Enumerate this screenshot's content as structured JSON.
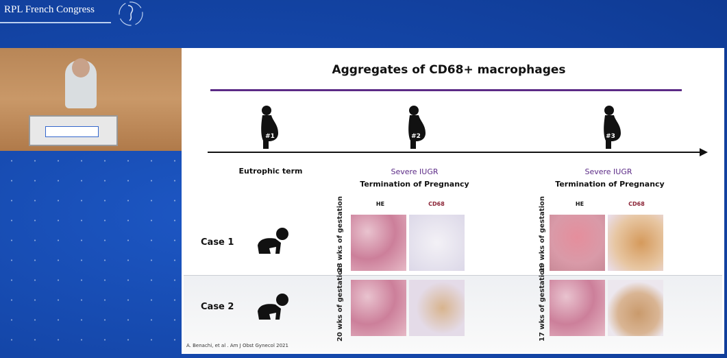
{
  "header": {
    "brand": "RPL French Congress"
  },
  "slide": {
    "title": "Aggregates of CD68+ macrophages",
    "accent_color": "#5b2a86",
    "timeline": [
      {
        "marker": "#1",
        "label": "Eutrophic term"
      },
      {
        "marker": "#2",
        "label_colored": "Severe IUGR",
        "label": "Termination of Pregnancy"
      },
      {
        "marker": "#3",
        "label_colored": "Severe IUGR",
        "label": "Termination of Pregnancy"
      }
    ],
    "stain_labels": {
      "he": "HE",
      "cd68": "CD68"
    },
    "cases": [
      {
        "label": "Case 1",
        "left_gestation": "23 wks of gestation",
        "right_gestation": "19 wks of gestation"
      },
      {
        "label": "Case 2",
        "left_gestation": "20 wks of gestation",
        "right_gestation": "17 wks of gestation"
      }
    ],
    "citation": "A. Benachi, et al . Am J Obst Gynecol 2021"
  }
}
